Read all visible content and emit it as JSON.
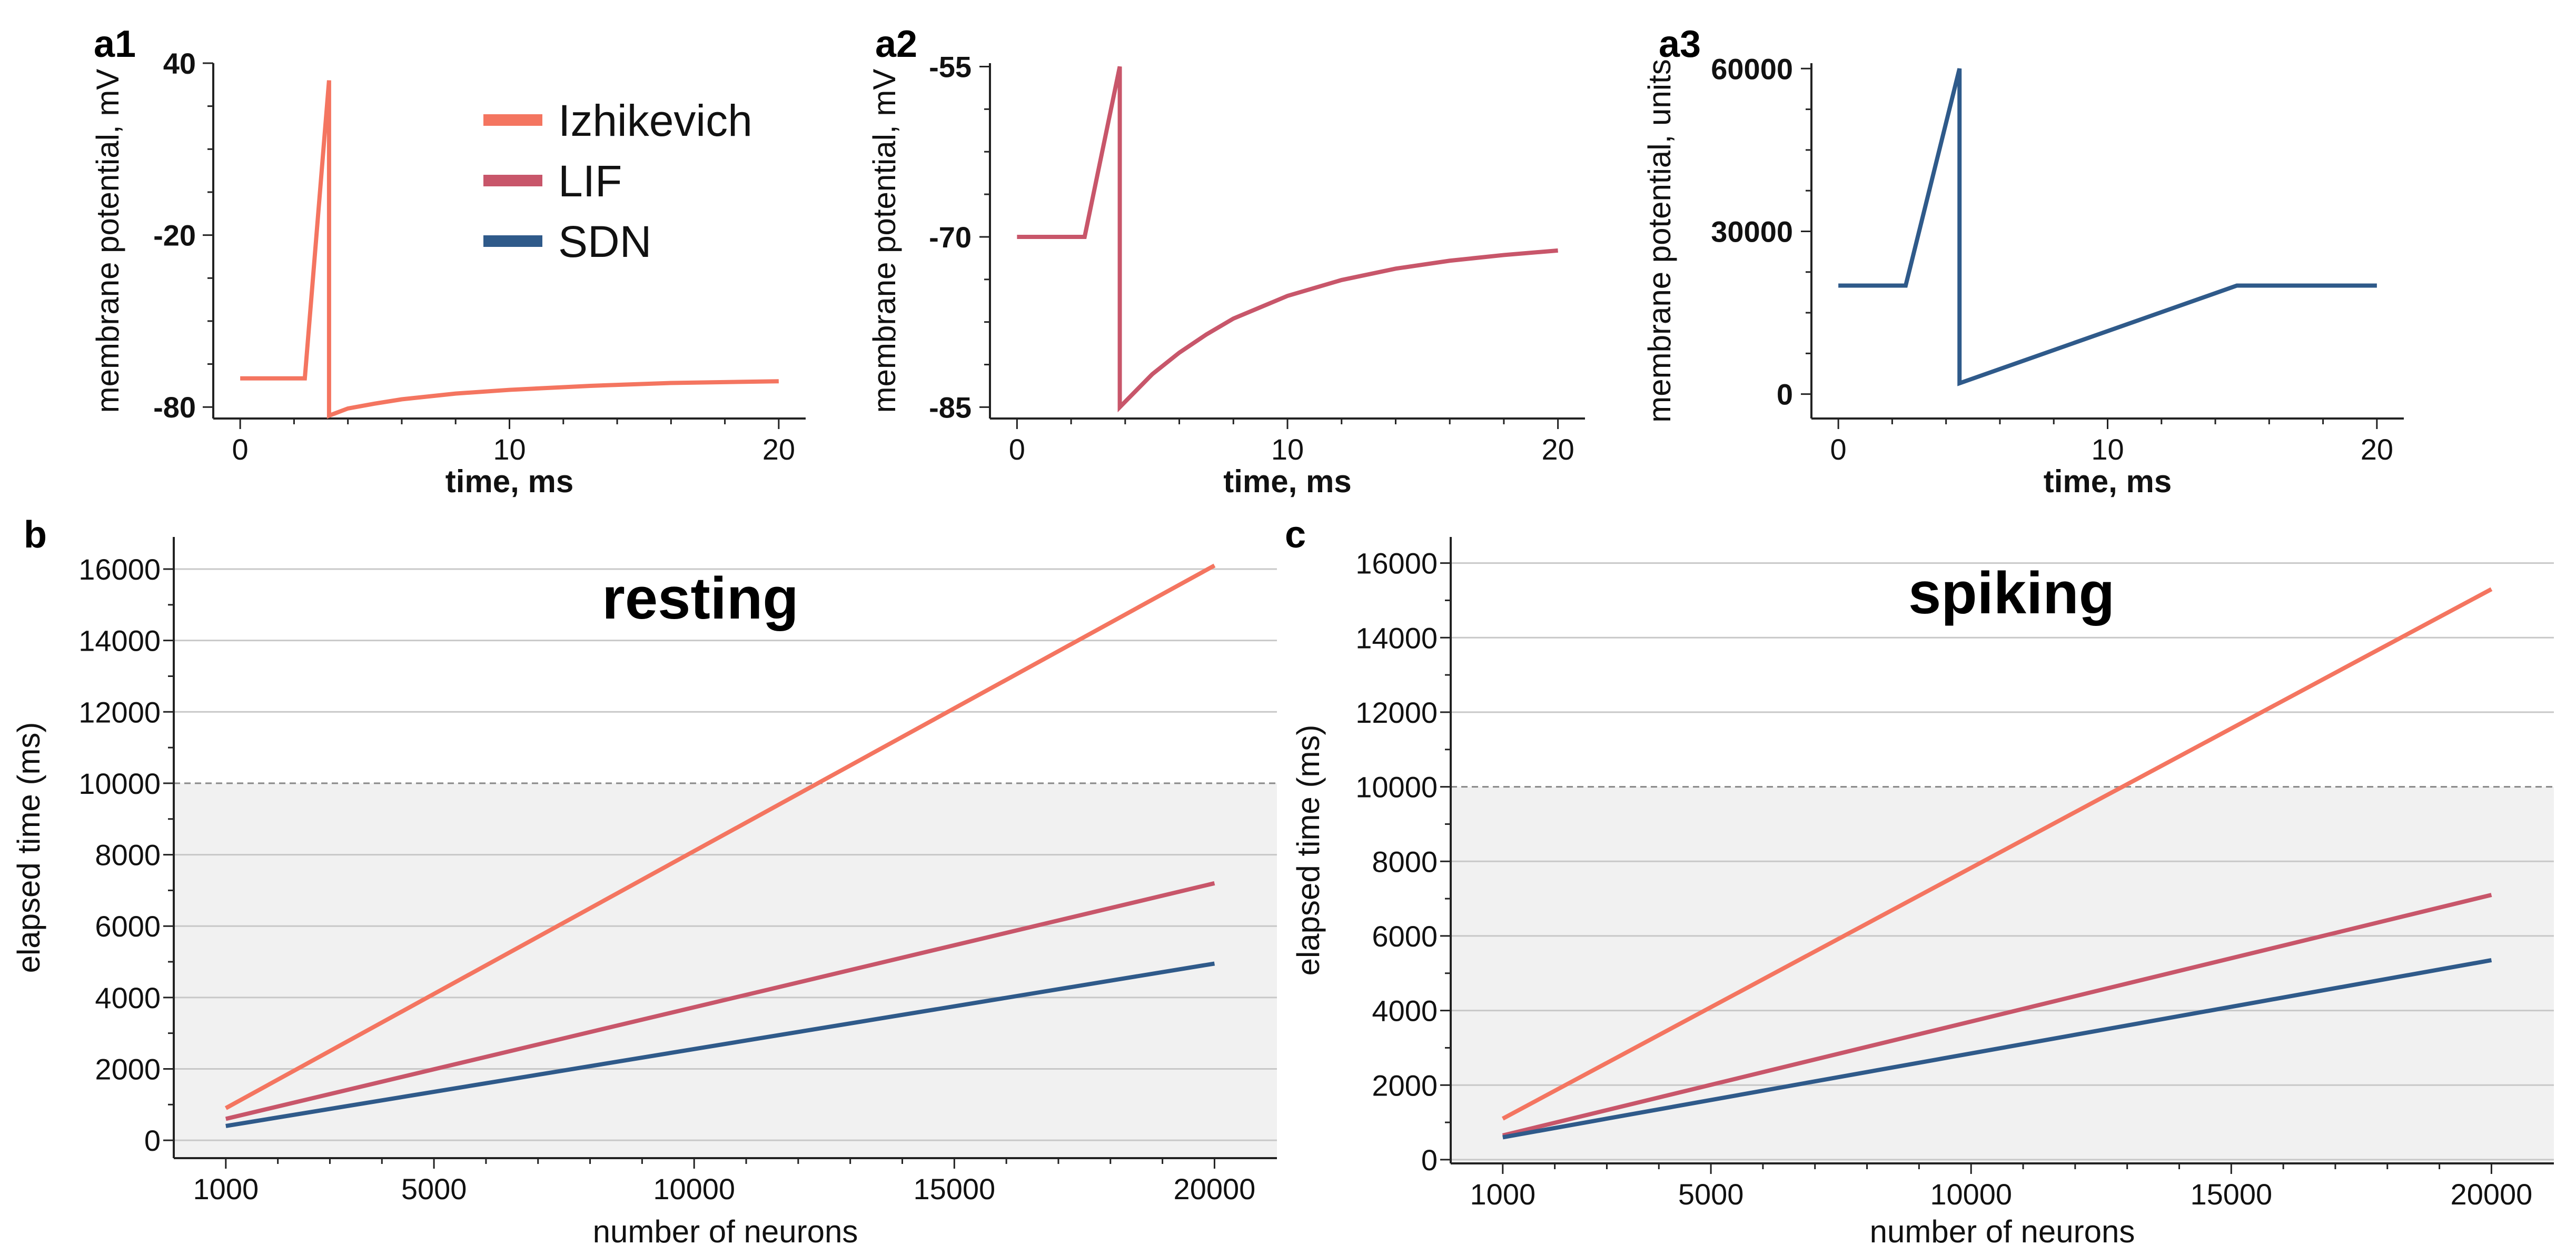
{
  "colors": {
    "izhikevich": "#f47560",
    "lif": "#c8566a",
    "sdn": "#2f5a8a",
    "shade": "#f1f1f1",
    "grid": "#c8c8c8",
    "dash": "#888888"
  },
  "legend": [
    {
      "label": "Izhikevich",
      "color": "#f47560"
    },
    {
      "label": "LIF",
      "color": "#c8566a"
    },
    {
      "label": "SDN",
      "color": "#2f5a8a"
    }
  ],
  "chart_data": [
    {
      "id": "a1",
      "panel_label": "a1",
      "type": "line",
      "xlabel": "time, ms",
      "ylabel": "membrane potential, mV",
      "xlim": [
        -1,
        21
      ],
      "ylim": [
        -84,
        40
      ],
      "xticks": [
        0,
        10,
        20
      ],
      "yticks": [
        -80,
        -20,
        40
      ],
      "series": [
        {
          "name": "Izhikevich",
          "color": "#f47560",
          "x": [
            0,
            2.4,
            3.3,
            3.3,
            4,
            5,
            6,
            8,
            10,
            13,
            16,
            20
          ],
          "y": [
            -70,
            -70,
            34,
            -83,
            -80.5,
            -78.8,
            -77.3,
            -75.3,
            -74,
            -72.6,
            -71.6,
            -71
          ]
        }
      ]
    },
    {
      "id": "a2",
      "panel_label": "a2",
      "type": "line",
      "xlabel": "time, ms",
      "ylabel": "membrane potential, mV",
      "xlim": [
        -1,
        21
      ],
      "ylim": [
        -86,
        -54.7
      ],
      "xticks": [
        0,
        10,
        20
      ],
      "yticks": [
        -85,
        -70,
        -55
      ],
      "series": [
        {
          "name": "LIF",
          "color": "#c8566a",
          "x": [
            0,
            2.5,
            3.8,
            3.8,
            5,
            6,
            7,
            8,
            10,
            12,
            14,
            16,
            18,
            20
          ],
          "y": [
            -70,
            -70,
            -55,
            -85,
            -82.1,
            -80.2,
            -78.6,
            -77.2,
            -75.2,
            -73.8,
            -72.8,
            -72.1,
            -71.6,
            -71.2
          ]
        }
      ]
    },
    {
      "id": "a3",
      "panel_label": "a3",
      "type": "line",
      "xlabel": "time, ms",
      "ylabel": "membrane potential, units",
      "xlim": [
        -1,
        21
      ],
      "ylim": [
        -4500,
        61000
      ],
      "xticks": [
        0,
        10,
        20
      ],
      "yticks": [
        0,
        30000,
        60000
      ],
      "series": [
        {
          "name": "SDN",
          "color": "#2f5a8a",
          "x": [
            0,
            2.5,
            4.5,
            4.5,
            14.8,
            20
          ],
          "y": [
            20000,
            20000,
            60000,
            2000,
            20000,
            20000
          ]
        }
      ]
    },
    {
      "id": "b",
      "panel_label": "b",
      "type": "line",
      "title": "resting",
      "xlabel": "number of neurons",
      "ylabel": "elapsed time (ms)",
      "xlim": [
        0,
        21200
      ],
      "ylim": [
        -500,
        16900
      ],
      "xticks": [
        1000,
        5000,
        10000,
        15000,
        20000
      ],
      "yticks": [
        0,
        2000,
        4000,
        6000,
        8000,
        10000,
        12000,
        14000,
        16000
      ],
      "shade_below": 10000,
      "series": [
        {
          "name": "Izhikevich",
          "color": "#f47560",
          "x": [
            1000,
            20000
          ],
          "y": [
            900,
            16100
          ]
        },
        {
          "name": "LIF",
          "color": "#c8566a",
          "x": [
            1000,
            20000
          ],
          "y": [
            600,
            7200
          ]
        },
        {
          "name": "SDN",
          "color": "#2f5a8a",
          "x": [
            1000,
            20000
          ],
          "y": [
            400,
            4950
          ]
        }
      ]
    },
    {
      "id": "c",
      "panel_label": "c",
      "type": "line",
      "title": "spiking",
      "xlabel": "number of neurons",
      "ylabel": "elapsed time (ms)",
      "xlim": [
        0,
        21200
      ],
      "ylim": [
        -100,
        16700
      ],
      "xticks": [
        1000,
        5000,
        10000,
        15000,
        20000
      ],
      "yticks": [
        0,
        2000,
        4000,
        6000,
        8000,
        10000,
        12000,
        14000,
        16000
      ],
      "shade_below": 10000,
      "series": [
        {
          "name": "Izhikevich",
          "color": "#f47560",
          "x": [
            1000,
            20000
          ],
          "y": [
            1100,
            15300
          ]
        },
        {
          "name": "LIF",
          "color": "#c8566a",
          "x": [
            1000,
            20000
          ],
          "y": [
            650,
            7100
          ]
        },
        {
          "name": "SDN",
          "color": "#2f5a8a",
          "x": [
            1000,
            20000
          ],
          "y": [
            600,
            5350
          ]
        }
      ]
    }
  ]
}
